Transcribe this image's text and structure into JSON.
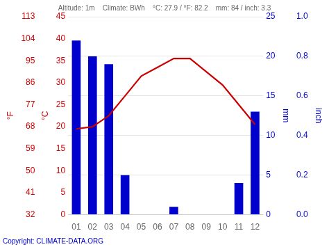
{
  "chart_data": {
    "type": "bar",
    "subtitle": [
      "Altitude: 1m",
      "Climate: BWh",
      "°C: 27.9 / °F: 82.2",
      "mm: 84 / inch: 3.3"
    ],
    "annotations": [
      "Copyright: CLIMATE-DATA.ORG"
    ],
    "categories": [
      "01",
      "02",
      "03",
      "04",
      "05",
      "06",
      "07",
      "08",
      "09",
      "10",
      "11",
      "12"
    ],
    "series": [
      {
        "type": "bar",
        "color": "#0000cc",
        "axis": "y2",
        "values": [
          22,
          20,
          19,
          5,
          0,
          0,
          1,
          0,
          0,
          0,
          4,
          13
        ]
      },
      {
        "type": "line",
        "color": "#cc0000",
        "axis": "y",
        "values": [
          19.5,
          20.0,
          22.5,
          27.0,
          31.5,
          33.5,
          35.5,
          35.5,
          32.5,
          29.5,
          25.0,
          20.5
        ]
      }
    ],
    "ylabel": "°C",
    "ylim": [
      0,
      45
    ],
    "yticks": [
      0,
      5,
      10,
      15,
      20,
      25,
      30,
      35,
      40,
      45
    ],
    "y3label": "°F",
    "y3lim": [
      0,
      45
    ],
    "y3ticks": [
      {
        "value": 0,
        "label": "32"
      },
      {
        "value": 5,
        "label": "41"
      },
      {
        "value": 10,
        "label": "50"
      },
      {
        "value": 15,
        "label": "59"
      },
      {
        "value": 20,
        "label": "68"
      },
      {
        "value": 25,
        "label": "77"
      },
      {
        "value": 30,
        "label": "86"
      },
      {
        "value": 35,
        "label": "95"
      },
      {
        "value": 40,
        "label": "104"
      },
      {
        "value": 45,
        "label": "113"
      }
    ],
    "y2label": "mm",
    "y2lim": [
      0,
      25
    ],
    "y2ticks": [
      0,
      5,
      10,
      15,
      20,
      25
    ],
    "y4label": "inch",
    "y4lim": [
      0,
      25
    ],
    "y4ticks": [
      {
        "value": 0,
        "label": "0.0"
      },
      {
        "value": 5,
        "label": "0.2"
      },
      {
        "value": 10,
        "label": "0.4"
      },
      {
        "value": 15,
        "label": "0.6"
      },
      {
        "value": 20,
        "label": "0.8"
      },
      {
        "value": 25,
        "label": "1.0"
      }
    ],
    "grid": true
  }
}
